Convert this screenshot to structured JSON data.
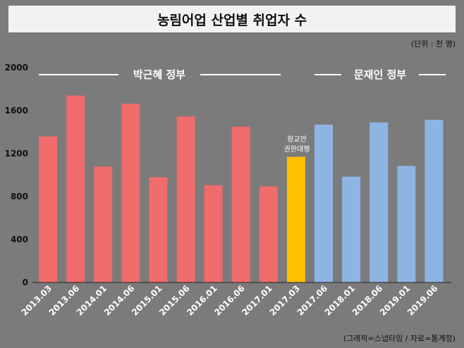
{
  "header": {
    "title": "농림어업 산업별 취업자 수",
    "unit": "(단위 : 천 명)",
    "source": "(그래픽=스냅타임 / 자료=통계청)"
  },
  "chart_data": {
    "type": "bar",
    "title": "농림어업 산업별 취업자 수",
    "xlabel": "",
    "ylabel": "",
    "ylim": [
      0,
      2000
    ],
    "yticks": [
      0,
      400,
      800,
      1200,
      1600,
      2000
    ],
    "grid": false,
    "categories": [
      "2013.03",
      "2013.06",
      "2014.01",
      "2014.06",
      "2015.01",
      "2015.06",
      "2016.01",
      "2016.06",
      "2017.01",
      "2017.03",
      "2017.06",
      "2018.01",
      "2018.06",
      "2019.01",
      "2019.06"
    ],
    "values": [
      1360,
      1740,
      1080,
      1665,
      980,
      1545,
      905,
      1450,
      895,
      1170,
      1470,
      985,
      1490,
      1085,
      1515
    ],
    "bar_groups": [
      "park",
      "park",
      "park",
      "park",
      "park",
      "park",
      "park",
      "park",
      "park",
      "acting",
      "moon",
      "moon",
      "moon",
      "moon",
      "moon"
    ],
    "colors": {
      "park": "#f06b6b",
      "acting": "#ffc000",
      "moon": "#8eb4e3"
    },
    "annotations": {
      "park_label": "박근혜 정부",
      "moon_label": "문재인 정부",
      "acting_line1": "황교안",
      "acting_line2": "권한대행"
    }
  }
}
